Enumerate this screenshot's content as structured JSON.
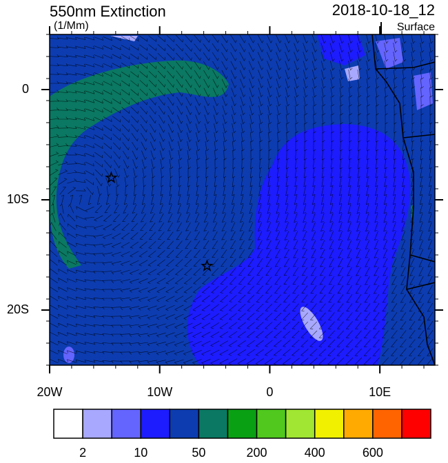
{
  "header": {
    "title": "550nm Extinction",
    "units": "(1/Mm)",
    "date": "2018-10-18_12",
    "level": "Surface"
  },
  "map": {
    "lonlim": [
      -20,
      15
    ],
    "latlim": [
      -25,
      5
    ],
    "xticks": [
      {
        "value": -20,
        "label": "20W"
      },
      {
        "value": -10,
        "label": "10W"
      },
      0,
      {
        "value": 10,
        "label": "10E"
      }
    ],
    "yticks": [
      0,
      {
        "value": -10,
        "label": "10S"
      },
      {
        "value": -20,
        "label": "20S"
      }
    ],
    "markers": [
      {
        "lon": -14.4,
        "lat": -8
      },
      {
        "lon": -5.7,
        "lat": -16
      }
    ]
  },
  "colorbar": {
    "colors": [
      "#ffffff",
      "#a8a8ff",
      "#6464ff",
      "#1c1cff",
      "#0c3cb0",
      "#0a7862",
      "#0aa014",
      "#50c81e",
      "#a0e632",
      "#f0f000",
      "#ffaa00",
      "#ff6400",
      "#ff0000"
    ],
    "labels": [
      2,
      10,
      50,
      200,
      400,
      600
    ]
  }
}
